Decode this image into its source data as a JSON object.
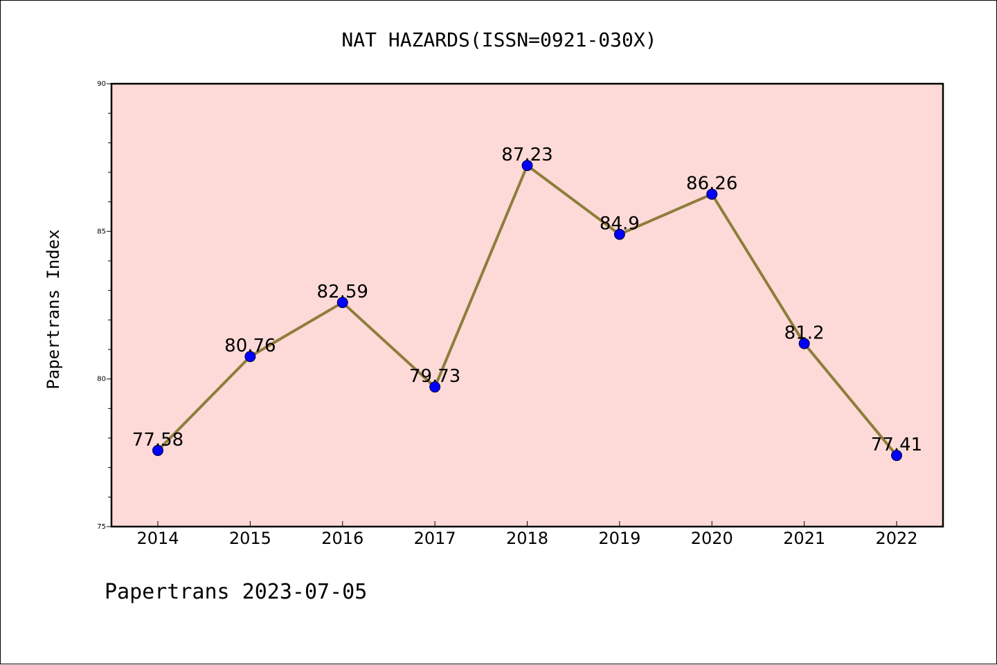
{
  "footer": "Papertrans 2023-07-05",
  "colors": {
    "plot_background": "#fddad7",
    "line": "#8e7d3c",
    "marker": "#0000ff",
    "axes": "#000000"
  },
  "chart_data": {
    "type": "line",
    "title": "NAT HAZARDS(ISSN=0921-030X)",
    "xlabel": "",
    "ylabel": "Papertrans Index",
    "categories": [
      "2014",
      "2015",
      "2016",
      "2017",
      "2018",
      "2019",
      "2020",
      "2021",
      "2022"
    ],
    "series": [
      {
        "values": [
          77.58,
          80.76,
          82.59,
          79.73,
          87.23,
          84.9,
          86.26,
          81.2,
          77.41
        ],
        "labels": [
          "77.58",
          "80.76",
          "82.59",
          "79.73",
          "87.23",
          "84.9",
          "86.26",
          "81.2",
          "77.41"
        ]
      }
    ],
    "ylim": [
      75,
      90
    ],
    "yticks": [
      "75",
      "80",
      "85",
      "90"
    ],
    "y_minor_step": 1,
    "grid": false,
    "legend": "none",
    "markers": "circle"
  }
}
